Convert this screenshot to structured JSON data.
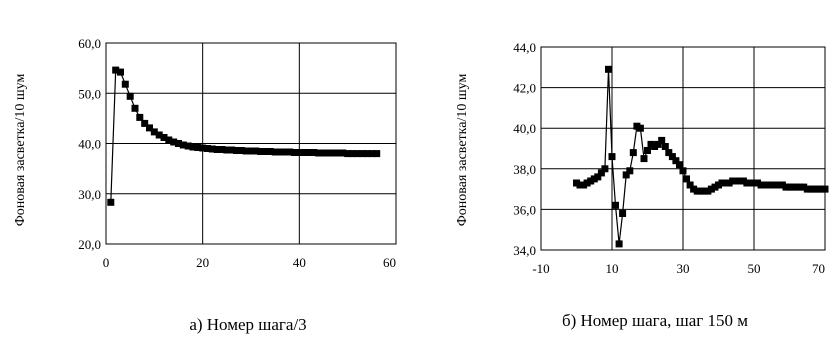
{
  "chart_data": [
    {
      "type": "line",
      "caption": "а) Номер шага/3",
      "xlabel": "",
      "ylabel": "Фоновая засветка/10 шум",
      "xlim": [
        0,
        60
      ],
      "ylim": [
        20,
        60
      ],
      "xticks": [
        "0",
        "20",
        "40",
        "60"
      ],
      "yticks": [
        "20,0",
        "30,0",
        "40,0",
        "50,0",
        "60,0"
      ],
      "grid": true,
      "marker": "square",
      "series": [
        {
          "x": [
            1,
            2,
            3,
            4,
            5,
            6,
            7,
            8,
            9,
            10,
            11,
            12,
            13,
            14,
            15,
            16,
            17,
            18,
            19,
            20,
            21,
            22,
            23,
            24,
            25,
            26,
            27,
            28,
            29,
            30,
            31,
            32,
            33,
            34,
            35,
            36,
            37,
            38,
            39,
            40,
            41,
            42,
            43,
            44,
            45,
            46,
            47,
            48,
            49,
            50,
            51,
            52,
            53,
            54,
            55,
            56
          ],
          "values": [
            28.3,
            54.6,
            54.2,
            51.8,
            49.4,
            47.0,
            45.2,
            44.0,
            43.1,
            42.3,
            41.7,
            41.2,
            40.7,
            40.3,
            40.0,
            39.7,
            39.5,
            39.3,
            39.2,
            39.1,
            39.0,
            38.9,
            38.8,
            38.8,
            38.7,
            38.7,
            38.6,
            38.6,
            38.5,
            38.5,
            38.5,
            38.4,
            38.4,
            38.4,
            38.3,
            38.3,
            38.3,
            38.3,
            38.2,
            38.2,
            38.2,
            38.2,
            38.2,
            38.1,
            38.1,
            38.1,
            38.1,
            38.1,
            38.1,
            38.0,
            38.0,
            38.0,
            38.0,
            38.0,
            38.0,
            38.0
          ]
        }
      ]
    },
    {
      "type": "line",
      "caption": "б) Номер шага, шаг 150 м",
      "xlabel": "",
      "ylabel": "Фоновая засветка/10 шум",
      "xlim": [
        -10,
        70
      ],
      "ylim": [
        34,
        44
      ],
      "xticks": [
        "-10",
        "10",
        "30",
        "50",
        "70"
      ],
      "yticks": [
        "34,0",
        "36,0",
        "38,0",
        "40,0",
        "42,0",
        "44,0"
      ],
      "grid": true,
      "marker": "square",
      "series": [
        {
          "x": [
            0,
            1,
            2,
            3,
            4,
            5,
            6,
            7,
            8,
            9,
            10,
            11,
            12,
            13,
            14,
            15,
            16,
            17,
            18,
            19,
            20,
            21,
            22,
            23,
            24,
            25,
            26,
            27,
            28,
            29,
            30,
            31,
            32,
            33,
            34,
            35,
            36,
            37,
            38,
            39,
            40,
            41,
            42,
            43,
            44,
            45,
            46,
            47,
            48,
            49,
            50,
            51,
            52,
            53,
            54,
            55,
            56,
            57,
            58,
            59,
            60,
            61,
            62,
            63,
            64,
            65,
            66,
            67,
            68,
            69,
            70
          ],
          "values": [
            37.3,
            37.2,
            37.2,
            37.3,
            37.4,
            37.5,
            37.6,
            37.8,
            38.0,
            42.9,
            38.6,
            36.2,
            34.3,
            35.8,
            37.7,
            37.9,
            38.8,
            40.1,
            40.0,
            38.5,
            38.9,
            39.2,
            39.1,
            39.2,
            39.4,
            39.1,
            38.8,
            38.6,
            38.4,
            38.2,
            37.9,
            37.5,
            37.2,
            37.0,
            36.9,
            36.9,
            36.9,
            36.9,
            37.0,
            37.1,
            37.2,
            37.3,
            37.3,
            37.3,
            37.4,
            37.4,
            37.4,
            37.4,
            37.3,
            37.3,
            37.3,
            37.3,
            37.2,
            37.2,
            37.2,
            37.2,
            37.2,
            37.2,
            37.2,
            37.1,
            37.1,
            37.1,
            37.1,
            37.1,
            37.1,
            37.0,
            37.0,
            37.0,
            37.0,
            37.0,
            37.0
          ]
        }
      ]
    }
  ]
}
